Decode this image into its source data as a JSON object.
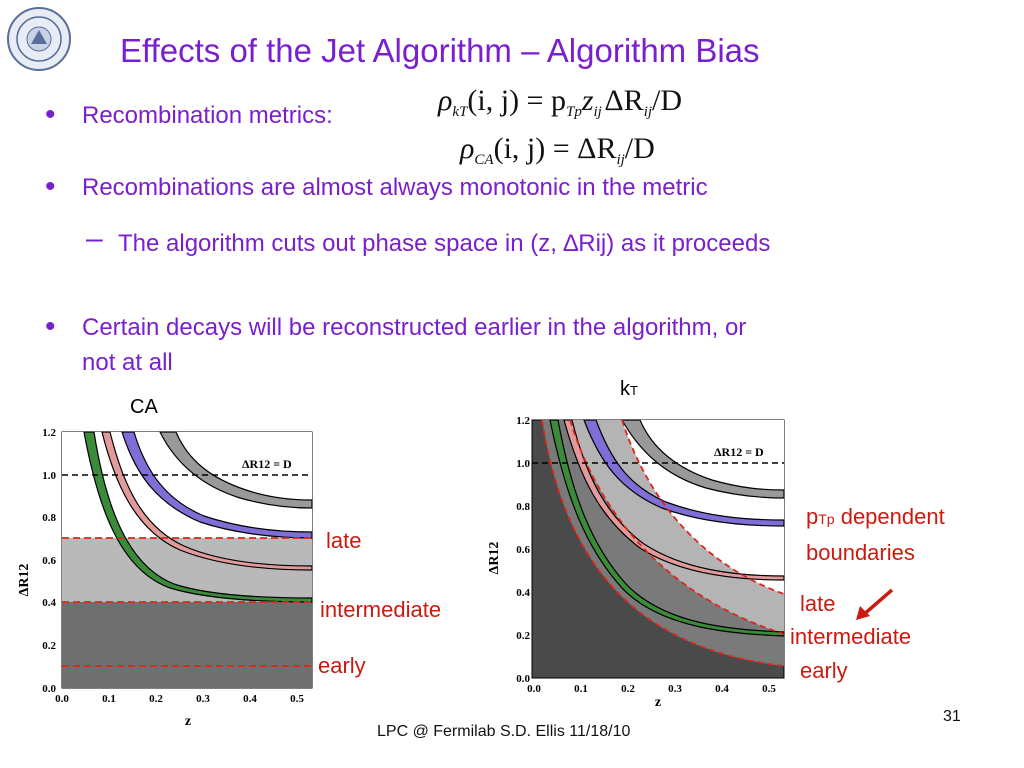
{
  "slide": {
    "title": "Effects of the Jet Algorithm – Algorithm Bias",
    "bullets": {
      "b1": "Recombination metrics:",
      "b2": "Recombinations are almost always monotonic in the metric",
      "sub": "The algorithm cuts out phase space in (z, ∆Rij) as it proceeds",
      "b3_line1": "Certain decays will be reconstructed earlier in the algorithm, or",
      "b3_line2": "not at all"
    },
    "formula1": {
      "lhs": "ρ",
      "lhs_sub": "kT",
      "args": "(i, j) = p",
      "p_sub": "Tp",
      "z": "z",
      "z_sub": "ij",
      "delta": "ΔR",
      "r_sub": "ij",
      "over": "/D"
    },
    "formula2": {
      "lhs": "ρ",
      "lhs_sub": "CA",
      "args": "(i, j) = ΔR",
      "r_sub": "ij",
      "over": "/D"
    }
  },
  "ca_plot": {
    "label": "CA",
    "xlabel": "z",
    "ylabel": "ΔR12",
    "xticks": [
      "0.0",
      "0.1",
      "0.2",
      "0.3",
      "0.4",
      "0.5"
    ],
    "yticks": [
      "0.0",
      "0.2",
      "0.4",
      "0.6",
      "0.8",
      "1.0",
      "1.2"
    ],
    "dline": "ΔR12 = D",
    "late": "late",
    "intermediate": "intermediate",
    "early": "early"
  },
  "kt_plot": {
    "label": "kT",
    "xlabel": "z",
    "ylabel": "ΔR12",
    "xticks": [
      "0.0",
      "0.1",
      "0.2",
      "0.3",
      "0.4",
      "0.5"
    ],
    "yticks": [
      "0.0",
      "0.2",
      "0.4",
      "0.6",
      "0.8",
      "1.0",
      "1.2"
    ],
    "dline": "ΔR12 = D",
    "ptp_dependent": "pTp dependent",
    "boundaries": "boundaries",
    "late": "late",
    "intermediate": "intermediate",
    "early": "early"
  },
  "footer": {
    "text": "LPC @ Fermilab  S.D. Ellis    11/18/10",
    "page": "31"
  },
  "colors": {
    "purple": "#7a1fcf",
    "red": "#cc1a0f",
    "gray_light": "#b4b4b4",
    "gray_dark": "#7a7a7a"
  }
}
